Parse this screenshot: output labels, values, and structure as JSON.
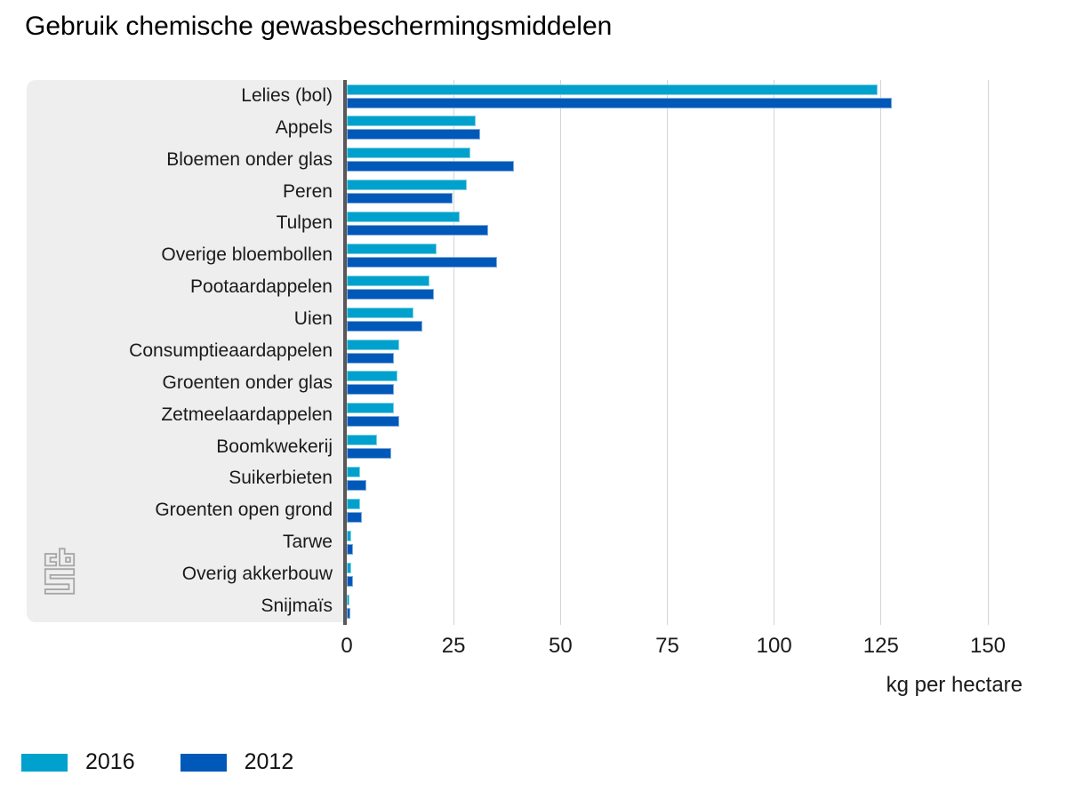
{
  "title": "Gebruik chemische gewasbeschermingsmiddelen",
  "chart_data": {
    "type": "bar",
    "orientation": "horizontal",
    "title": "Gebruik chemische gewasbeschermingsmiddelen",
    "categories": [
      "Lelies (bol)",
      "Appels",
      "Bloemen onder glas",
      "Peren",
      "Tulpen",
      "Overige bloembollen",
      "Pootaardappelen",
      "Uien",
      "Consumptieaardappelen",
      "Groenten onder glas",
      "Zetmeelaardappelen",
      "Boomkwekerij",
      "Suikerbieten",
      "Groenten open grond",
      "Tarwe",
      "Overig akkerbouw",
      "Snijmaïs"
    ],
    "series": [
      {
        "name": "2016",
        "color": "#00a1cd",
        "values": [
          124.1,
          30.1,
          28.9,
          28.1,
          26.5,
          21.1,
          19.4,
          15.6,
          12.3,
          11.8,
          11.1,
          7.0,
          3.2,
          3.1,
          1.0,
          1.1,
          0.7
        ]
      },
      {
        "name": "2012",
        "color": "#0058b8",
        "values": [
          127.6,
          31.3,
          39.2,
          24.8,
          33.1,
          35.1,
          20.3,
          17.7,
          11.1,
          11.1,
          12.3,
          10.4,
          4.5,
          3.6,
          1.5,
          1.5,
          0.9
        ]
      }
    ],
    "xlabel": "kg per hectare",
    "xlim": [
      0,
      150
    ],
    "xticks": [
      0,
      25,
      50,
      75,
      100,
      125,
      150
    ],
    "grid": true,
    "legend_position": "bottom"
  },
  "legend": {
    "items": [
      {
        "label": "2016",
        "color": "#00a1cd"
      },
      {
        "label": "2012",
        "color": "#0058b8"
      }
    ]
  },
  "colors": {
    "panel_background": "#eeeeee",
    "axis_line": "#58585a",
    "gridline": "#d4d4d4",
    "logo_gray": "#a6a6a6"
  },
  "logo": {
    "name": "cbs-logo"
  }
}
